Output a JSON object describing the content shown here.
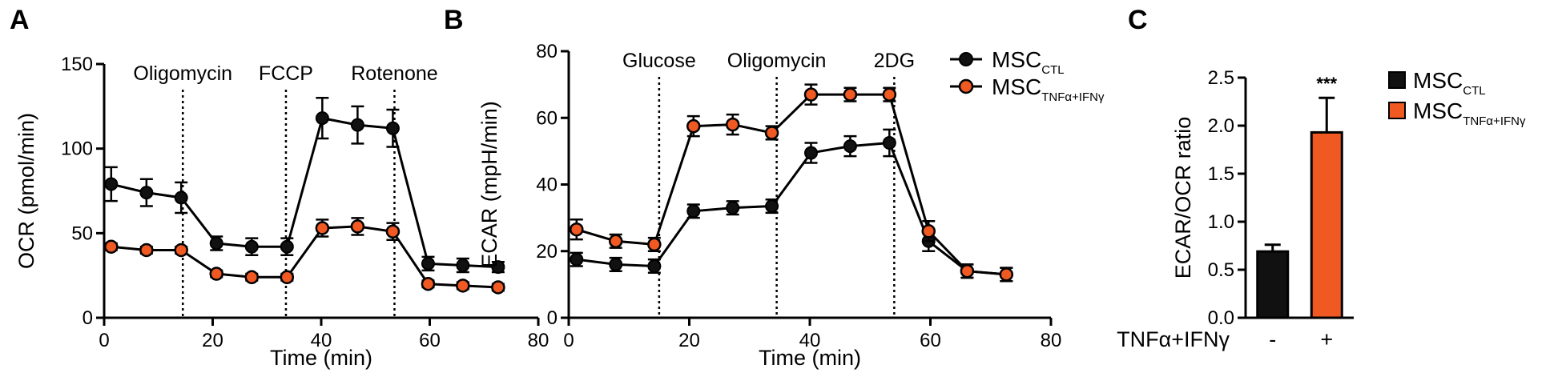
{
  "panels": {
    "a": {
      "letter": "A"
    },
    "b": {
      "letter": "B"
    },
    "c": {
      "letter": "C"
    }
  },
  "legend": {
    "ctl": {
      "main": "MSC",
      "sub": "CTL"
    },
    "tnf": {
      "main": "MSC",
      "sub": "TNFα+IFNγ"
    }
  },
  "colors": {
    "ctl": "#111111",
    "tnf": "#f05a22"
  },
  "chart_data": [
    {
      "type": "line",
      "panel": "A",
      "xlabel": "Time (min)",
      "ylabel": "OCR (pmol/min)",
      "xlim": [
        0,
        80
      ],
      "ylim": [
        0,
        150
      ],
      "xticks": [
        0,
        20,
        40,
        60,
        80
      ],
      "yticks": [
        0,
        50,
        100,
        150
      ],
      "injections": [
        {
          "label": "Oligomycin",
          "x": 14.5
        },
        {
          "label": "FCCP",
          "x": 33.5
        },
        {
          "label": "Rotenone",
          "x": 53.5
        }
      ],
      "x": [
        1.3,
        7.8,
        14.2,
        20.7,
        27.2,
        33.7,
        40.2,
        46.7,
        53.2,
        59.7,
        66.1,
        72.6
      ],
      "series": [
        {
          "name": "MSC CTL",
          "color": "#111111",
          "values": [
            79,
            74,
            71,
            44,
            42,
            42,
            118,
            114,
            112,
            32,
            31,
            30
          ],
          "errors": [
            10,
            8,
            9,
            4,
            5,
            5,
            12,
            11,
            11,
            4,
            4,
            3
          ]
        },
        {
          "name": "MSC TNFα+IFNγ",
          "color": "#f05a22",
          "values": [
            42,
            40,
            40,
            26,
            24,
            24,
            53,
            54,
            51,
            20,
            19,
            18
          ],
          "errors": [
            2,
            2,
            2,
            2,
            2,
            2,
            5,
            5,
            5,
            2,
            2,
            2
          ]
        }
      ]
    },
    {
      "type": "line",
      "panel": "B",
      "xlabel": "Time (min)",
      "ylabel": "ECAR (mpH/min)",
      "xlim": [
        0,
        80
      ],
      "ylim": [
        0,
        80
      ],
      "xticks": [
        0,
        20,
        40,
        60,
        80
      ],
      "yticks": [
        0,
        20,
        40,
        60,
        80
      ],
      "injections": [
        {
          "label": "Glucose",
          "x": 15
        },
        {
          "label": "Oligomycin",
          "x": 34.5
        },
        {
          "label": "2DG",
          "x": 54
        }
      ],
      "x": [
        1.3,
        7.8,
        14.2,
        20.7,
        27.2,
        33.7,
        40.2,
        46.7,
        53.2,
        59.7,
        66.1,
        72.6
      ],
      "series": [
        {
          "name": "MSC CTL",
          "color": "#111111",
          "values": [
            17.5,
            16,
            15.5,
            32,
            33,
            33.5,
            49.5,
            51.5,
            52.5,
            23,
            14,
            13
          ],
          "errors": [
            2,
            2,
            2,
            2,
            2,
            2,
            3,
            3,
            4,
            3,
            2,
            2
          ]
        },
        {
          "name": "MSC TNFα+IFNγ",
          "color": "#f05a22",
          "values": [
            26.5,
            23,
            22,
            57.5,
            58,
            55.5,
            67,
            67,
            67,
            26,
            14,
            13
          ],
          "errors": [
            3,
            2,
            2,
            3,
            3,
            2,
            3,
            2,
            2,
            3,
            2,
            2
          ]
        }
      ]
    },
    {
      "type": "bar",
      "panel": "C",
      "ylabel": "ECAR/OCR ratio",
      "ylim": [
        0,
        2.5
      ],
      "yticks": [
        0.0,
        0.5,
        1.0,
        1.5,
        2.0,
        2.5
      ],
      "ytick_labels": [
        "0.0",
        "0.5",
        "1.0",
        "1.5",
        "2.0",
        "2.5"
      ],
      "categories": [
        "-",
        "+"
      ],
      "xlabel": "TNFα+IFNγ",
      "values": [
        0.69,
        1.93
      ],
      "errors": [
        0.07,
        0.36
      ],
      "colors": [
        "#111111",
        "#f05a22"
      ],
      "annotations": [
        {
          "category": "+",
          "text": "***"
        }
      ]
    }
  ]
}
